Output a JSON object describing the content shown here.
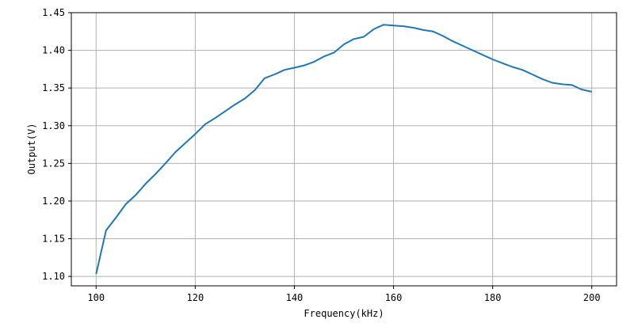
{
  "chart_data": {
    "type": "line",
    "title": "",
    "xlabel": "Frequency(kHz)",
    "ylabel": "Output(V)",
    "xlim": [
      95,
      205
    ],
    "ylim": [
      1.0875,
      1.45
    ],
    "xticks": [
      100,
      120,
      140,
      160,
      180,
      200
    ],
    "yticks": [
      1.1,
      1.15,
      1.2,
      1.25,
      1.3,
      1.35,
      1.4,
      1.45
    ],
    "grid": true,
    "color": "#1f77b4",
    "x": [
      100,
      102,
      104,
      106,
      108,
      110,
      112,
      114,
      116,
      118,
      120,
      122,
      124,
      126,
      128,
      130,
      132,
      134,
      136,
      138,
      140,
      142,
      144,
      146,
      148,
      150,
      152,
      154,
      156,
      158,
      160,
      162,
      164,
      166,
      168,
      170,
      172,
      174,
      176,
      178,
      180,
      182,
      184,
      186,
      188,
      190,
      192,
      194,
      196,
      198,
      200
    ],
    "y": [
      1.103,
      1.161,
      1.178,
      1.196,
      1.208,
      1.223,
      1.236,
      1.25,
      1.265,
      1.277,
      1.289,
      1.302,
      1.31,
      1.319,
      1.328,
      1.336,
      1.347,
      1.363,
      1.368,
      1.374,
      1.377,
      1.38,
      1.385,
      1.392,
      1.397,
      1.408,
      1.415,
      1.418,
      1.428,
      1.434,
      1.433,
      1.432,
      1.43,
      1.427,
      1.425,
      1.419,
      1.412,
      1.406,
      1.4,
      1.394,
      1.388,
      1.383,
      1.378,
      1.374,
      1.368,
      1.362,
      1.357,
      1.355,
      1.354,
      1.348,
      1.345
    ]
  }
}
